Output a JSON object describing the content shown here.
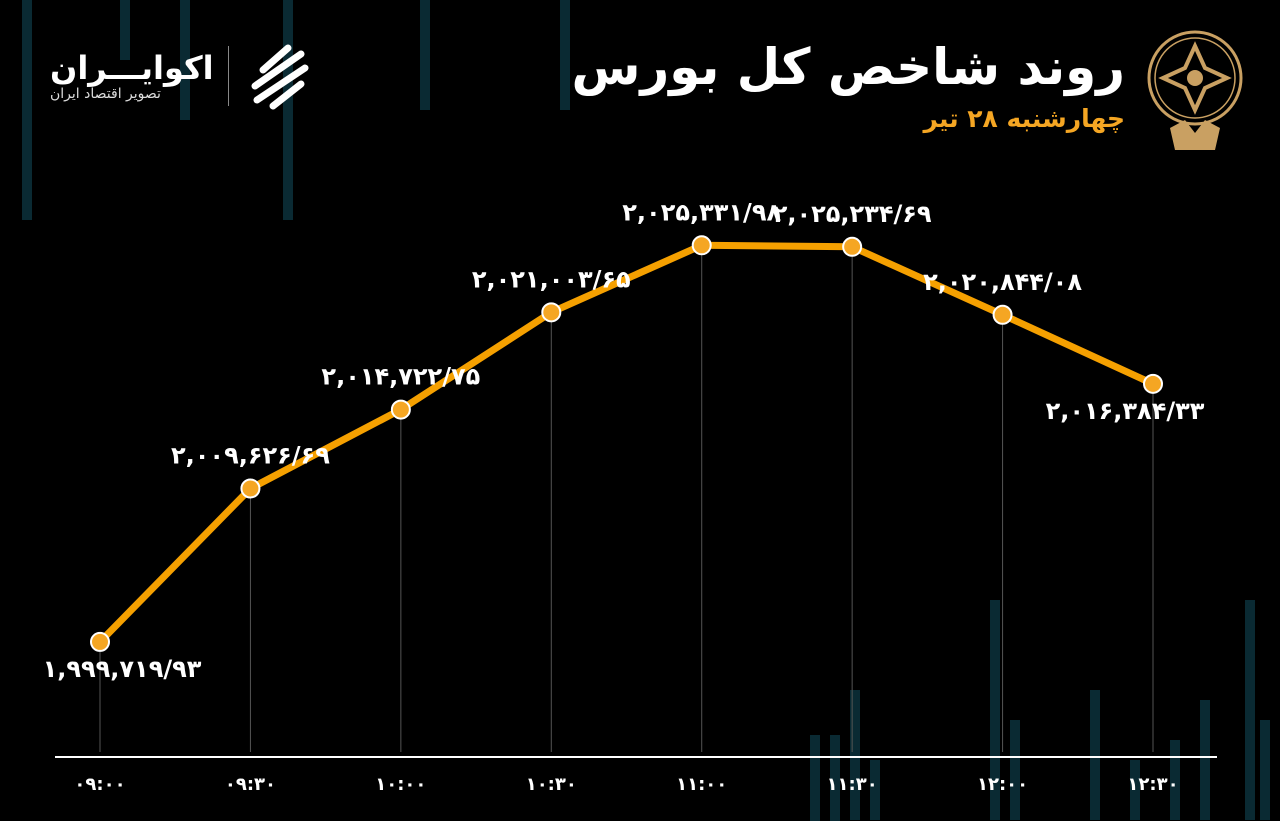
{
  "header": {
    "title": "روند شاخص کل بورس",
    "subtitle": "چهارشنبه ۲۸ تیر"
  },
  "brand": {
    "name": "اکوایـــران",
    "tagline": "تصویر اقتصاد ایران",
    "logo_text": "اکوایران"
  },
  "colors": {
    "line": "#f5a000",
    "marker": "#f5a623",
    "text": "#ffffff",
    "accent": "#f5a623",
    "background": "#000000",
    "decor_bars": "#0a2a33"
  },
  "chart_data": {
    "type": "line",
    "title": "روند شاخص کل بورس",
    "categories": [
      "۰۹:۰۰",
      "۰۹:۳۰",
      "۱۰:۰۰",
      "۱۰:۳۰",
      "۱۱:۰۰",
      "۱۱:۳۰",
      "۱۲:۰۰",
      "۱۲:۳۰"
    ],
    "values": [
      1999719.93,
      2009626.69,
      2014722.75,
      2021003.65,
      2025331.98,
      2025234.69,
      2020844.08,
      2016384.33
    ],
    "data_labels": [
      "۱,۹۹۹,۷۱۹/۹۳",
      "۲,۰۰۹,۶۲۶/۶۹",
      "۲,۰۱۴,۷۲۲/۷۵",
      "۲,۰۲۱,۰۰۳/۶۵",
      "۲,۰۲۵,۳۳۱/۹۸",
      "۲,۰۲۵,۲۳۴/۶۹",
      "۲,۰۲۰,۸۴۴/۰۸",
      "۲,۰۱۶,۳۸۴/۳۳"
    ],
    "label_positions": [
      "below",
      "above",
      "above",
      "above",
      "above",
      "above",
      "above",
      "below"
    ],
    "ylim": [
      1995000,
      2030000
    ],
    "grid": false,
    "xlabel": "",
    "ylabel": ""
  }
}
